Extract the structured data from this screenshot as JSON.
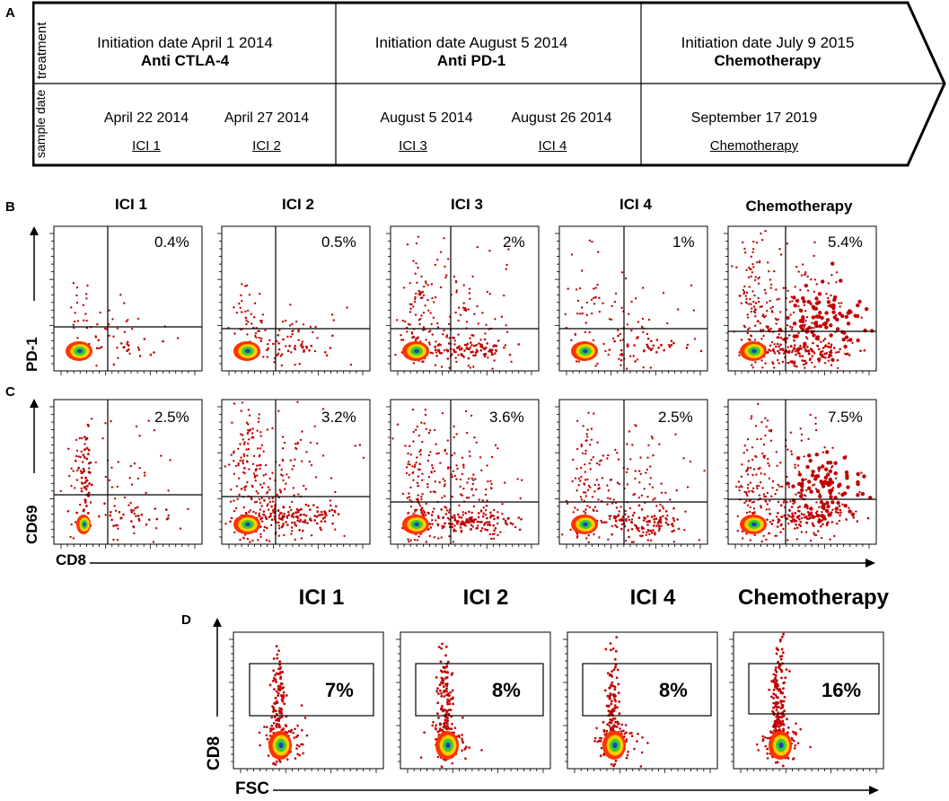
{
  "panel_labels": {
    "a": "A",
    "b": "B",
    "c": "C",
    "d": "D"
  },
  "timeline": {
    "row_labels": {
      "treatment": "treatment",
      "sample_date": "sample date"
    },
    "treatments": [
      {
        "initiation": "Initiation date April 1 2014",
        "drug": "Anti CTLA-4"
      },
      {
        "initiation": "Initiation date August 5 2014",
        "drug": "Anti PD-1"
      },
      {
        "initiation": "Initiation date July 9 2015",
        "drug": "Chemotherapy"
      }
    ],
    "samples": [
      {
        "date": "April 22 2014",
        "code": "ICI 1"
      },
      {
        "date": "April 27 2014",
        "code": "ICI 2"
      },
      {
        "date": "August 5 2014",
        "code": "ICI 3"
      },
      {
        "date": "August 26 2014",
        "code": "ICI 4"
      },
      {
        "date": "September 17 2019",
        "code": "Chemotherapy"
      }
    ]
  },
  "chart_data": [
    {
      "type": "scatter",
      "panel": "B",
      "columns": [
        "ICI 1",
        "ICI 2",
        "ICI 3",
        "ICI 4",
        "Chemotherapy"
      ],
      "xlabel": "CD8",
      "ylabel": "PD-1",
      "percentages": [
        "0.4%",
        "0.5%",
        "2%",
        "1%",
        "5.4%"
      ],
      "values": [
        0.4,
        0.5,
        2,
        1,
        5.4
      ]
    },
    {
      "type": "scatter",
      "panel": "C",
      "columns": [
        "ICI 1",
        "ICI 2",
        "ICI 3",
        "ICI 4",
        "Chemotherapy"
      ],
      "xlabel": "CD8",
      "ylabel": "CD69",
      "percentages": [
        "2.5%",
        "3.2%",
        "3.6%",
        "2.5%",
        "7.5%"
      ],
      "values": [
        2.5,
        3.2,
        3.6,
        2.5,
        7.5
      ]
    },
    {
      "type": "scatter",
      "panel": "D",
      "columns": [
        "ICI 1",
        "ICI 2",
        "ICI 4",
        "Chemotherapy"
      ],
      "xlabel": "FSC",
      "ylabel": "CD8",
      "percentages": [
        "7%",
        "8%",
        "8%",
        "16%"
      ],
      "values": [
        7,
        8,
        8,
        16
      ]
    }
  ],
  "colors": {
    "dot": "#c00000",
    "core1": "#ff3300",
    "core2": "#ffcc00",
    "core3": "#33cc33",
    "core4": "#1f3fbf"
  }
}
